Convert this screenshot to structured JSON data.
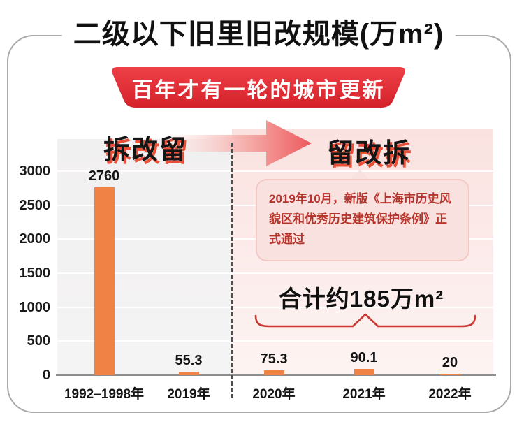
{
  "header": {
    "title": "二级以下旧里旧改规模(万m²)",
    "banner_label": "百年才有一轮的城市更新"
  },
  "phases": {
    "left_label": "拆改留",
    "right_label": "留改拆"
  },
  "annotation_bubble": {
    "text": "2019年10月，新版《上海市历史风貌区和优秀历史建筑保护条例》正式通过"
  },
  "summary": {
    "total_label": "合计约185万m²"
  },
  "chart_data": {
    "type": "bar",
    "title": "二级以下旧里旧改规模(万m²)",
    "categories": [
      "1992–1998年",
      "2019年",
      "2020年",
      "2021年",
      "2022年"
    ],
    "values": [
      2760,
      55.3,
      75.3,
      90.1,
      20
    ],
    "value_labels": [
      "2760",
      "55.3",
      "75.3",
      "90.1",
      "20"
    ],
    "ylim": [
      0,
      3000
    ],
    "yticks": [
      0,
      500,
      1000,
      1500,
      2000,
      2500,
      3000
    ],
    "grid": true,
    "legend": "none",
    "divider_after_category": "2019年",
    "left_group_label": "拆改留",
    "right_group_label": "留改拆",
    "right_group_total_label": "合计约185万m²"
  },
  "colors": {
    "banner_red": "#d5222a",
    "bar_orange": "#ef8244",
    "annotation_red": "#b5342b",
    "brace_red": "#cb3733",
    "left_plot_bg": "#f1f0f0",
    "right_plot_bg": "#fae2e0",
    "phase_shadow": "#ea5038"
  }
}
